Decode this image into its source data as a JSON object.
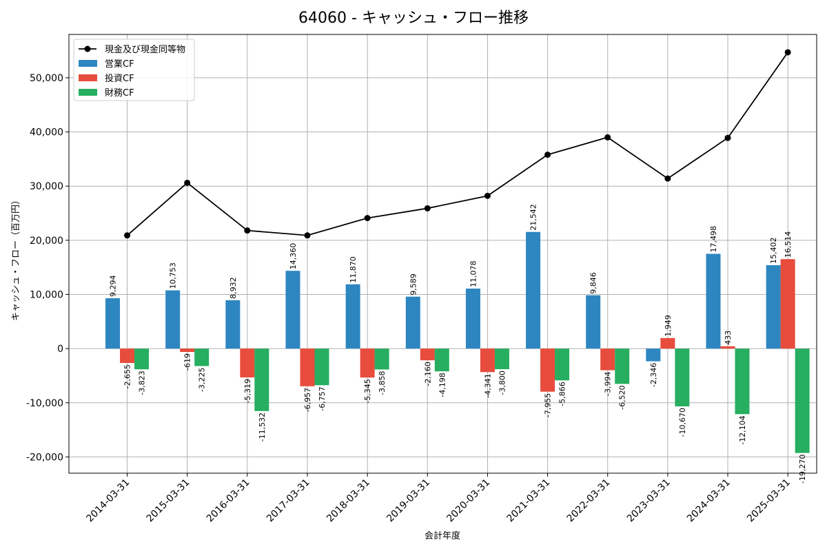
{
  "chart_data": {
    "type": "bar",
    "title": "64060 - キャッシュ・フロー推移",
    "xlabel": "会計年度",
    "ylabel": "キャッシュ・フロー（百万円）",
    "ylim": [
      -23000,
      58000
    ],
    "yticks": [
      -20000,
      -10000,
      0,
      10000,
      20000,
      30000,
      40000,
      50000
    ],
    "ytick_labels": [
      "-20,000",
      "-10,000",
      "0",
      "10,000",
      "20,000",
      "30,000",
      "40,000",
      "50,000"
    ],
    "grid": true,
    "legend_position": "top-left",
    "categories": [
      "2014-03-31",
      "2015-03-31",
      "2016-03-31",
      "2017-03-31",
      "2018-03-31",
      "2019-03-31",
      "2020-03-31",
      "2021-03-31",
      "2022-03-31",
      "2023-03-31",
      "2024-03-31",
      "2025-03-31"
    ],
    "series": [
      {
        "name": "営業CF",
        "kind": "bar",
        "color": "#2e86c1",
        "values": [
          9294,
          10753,
          8932,
          14360,
          11870,
          9589,
          11078,
          21542,
          9846,
          -2346,
          17498,
          15402
        ],
        "labels": [
          "9,294",
          "10,753",
          "8,932",
          "14,360",
          "11,870",
          "9,589",
          "11,078",
          "21,542",
          "9,846",
          "-2,346",
          "17,498",
          "15,402"
        ]
      },
      {
        "name": "投資CF",
        "kind": "bar",
        "color": "#e74c3c",
        "values": [
          -2655,
          -619,
          -5319,
          -6957,
          -5345,
          -2160,
          -4341,
          -7955,
          -3994,
          1949,
          433,
          16514
        ],
        "labels": [
          "-2,655",
          "-619",
          "-5,319",
          "-6,957",
          "-5,345",
          "-2,160",
          "-4,341",
          "-7,955",
          "-3,994",
          "1,949",
          "433",
          "16,514"
        ]
      },
      {
        "name": "財務CF",
        "kind": "bar",
        "color": "#27ae60",
        "values": [
          -3823,
          -3225,
          -11532,
          -6757,
          -3858,
          -4198,
          -3800,
          -5866,
          -6520,
          -10670,
          -12104,
          -19270
        ],
        "labels": [
          "-3,823",
          "-3,225",
          "-11,532",
          "-6,757",
          "-3,858",
          "-4,198",
          "-3,800",
          "-5,866",
          "-6,520",
          "-10,670",
          "-12,104",
          "-19,270"
        ]
      },
      {
        "name": "現金及び現金同等物",
        "kind": "line",
        "color": "#000000",
        "values": [
          20900,
          30600,
          21800,
          20900,
          24100,
          25900,
          28200,
          35800,
          39000,
          31400,
          38900,
          54700
        ]
      }
    ]
  }
}
